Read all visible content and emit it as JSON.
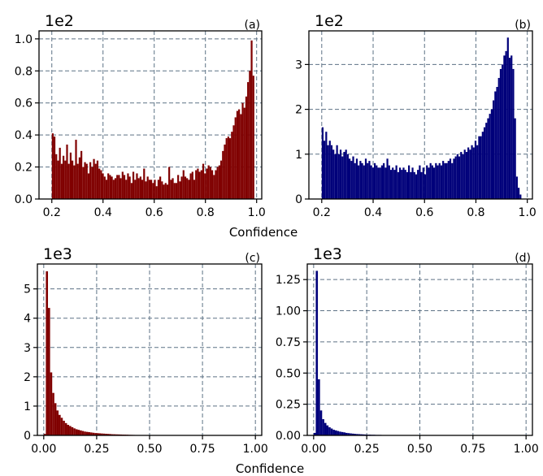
{
  "figure": {
    "xlabel_top": "Confidence",
    "xlabel_bottom": "Confidence"
  },
  "chart_data": [
    {
      "id": "a",
      "type": "bar",
      "panel_label": "(a)",
      "offset_text": "1e2",
      "color": "#800000",
      "bin_width": 0.007,
      "xlim": [
        0.15,
        1.02
      ],
      "ylim": [
        0,
        1.05
      ],
      "xticks": [
        0.2,
        0.4,
        0.6,
        0.8,
        1.0
      ],
      "xtick_labels": [
        "0.2",
        "0.4",
        "0.6",
        "0.8",
        "1.0"
      ],
      "yticks": [
        0.0,
        0.2,
        0.4,
        0.6,
        0.8,
        1.0
      ],
      "ytick_labels": [
        "0.0",
        "0.2",
        "0.4",
        "0.6",
        "0.8",
        "1.0"
      ],
      "grid": true,
      "x": [
        0.2,
        0.207,
        0.214,
        0.221,
        0.228,
        0.235,
        0.242,
        0.249,
        0.256,
        0.263,
        0.27,
        0.277,
        0.284,
        0.291,
        0.298,
        0.305,
        0.312,
        0.319,
        0.326,
        0.333,
        0.34,
        0.347,
        0.354,
        0.361,
        0.368,
        0.375,
        0.382,
        0.389,
        0.396,
        0.403,
        0.41,
        0.417,
        0.424,
        0.431,
        0.438,
        0.445,
        0.452,
        0.459,
        0.466,
        0.473,
        0.48,
        0.487,
        0.494,
        0.501,
        0.508,
        0.515,
        0.522,
        0.529,
        0.536,
        0.543,
        0.55,
        0.557,
        0.564,
        0.571,
        0.578,
        0.585,
        0.592,
        0.599,
        0.606,
        0.613,
        0.62,
        0.627,
        0.634,
        0.641,
        0.648,
        0.655,
        0.662,
        0.669,
        0.676,
        0.683,
        0.69,
        0.697,
        0.704,
        0.711,
        0.718,
        0.725,
        0.732,
        0.739,
        0.746,
        0.753,
        0.76,
        0.767,
        0.774,
        0.781,
        0.788,
        0.795,
        0.802,
        0.809,
        0.816,
        0.823,
        0.83,
        0.837,
        0.844,
        0.851,
        0.858,
        0.865,
        0.872,
        0.879,
        0.886,
        0.893,
        0.9,
        0.907,
        0.914,
        0.921,
        0.928,
        0.935,
        0.942,
        0.949,
        0.956,
        0.963,
        0.97,
        0.977,
        0.984
      ],
      "values": [
        0.41,
        0.39,
        0.28,
        0.24,
        0.32,
        0.22,
        0.27,
        0.24,
        0.34,
        0.22,
        0.29,
        0.24,
        0.21,
        0.37,
        0.22,
        0.26,
        0.3,
        0.2,
        0.23,
        0.22,
        0.16,
        0.23,
        0.2,
        0.25,
        0.22,
        0.24,
        0.19,
        0.18,
        0.16,
        0.14,
        0.12,
        0.16,
        0.15,
        0.14,
        0.12,
        0.13,
        0.15,
        0.15,
        0.13,
        0.17,
        0.15,
        0.12,
        0.16,
        0.14,
        0.1,
        0.17,
        0.12,
        0.16,
        0.13,
        0.14,
        0.12,
        0.19,
        0.11,
        0.14,
        0.12,
        0.12,
        0.1,
        0.12,
        0.08,
        0.12,
        0.14,
        0.11,
        0.09,
        0.1,
        0.09,
        0.2,
        0.12,
        0.13,
        0.1,
        0.1,
        0.15,
        0.11,
        0.14,
        0.18,
        0.14,
        0.13,
        0.12,
        0.16,
        0.17,
        0.12,
        0.18,
        0.19,
        0.17,
        0.18,
        0.22,
        0.16,
        0.19,
        0.21,
        0.2,
        0.18,
        0.15,
        0.18,
        0.2,
        0.21,
        0.24,
        0.3,
        0.34,
        0.38,
        0.39,
        0.38,
        0.42,
        0.46,
        0.51,
        0.55,
        0.56,
        0.53,
        0.6,
        0.57,
        0.64,
        0.73,
        0.8,
        0.99,
        0.77
      ]
    },
    {
      "id": "b",
      "type": "bar",
      "panel_label": "(b)",
      "offset_text": "1e2",
      "color": "#00007a",
      "bin_width": 0.007,
      "xlim": [
        0.15,
        1.02
      ],
      "ylim": [
        0,
        3.75
      ],
      "xticks": [
        0.2,
        0.4,
        0.6,
        0.8,
        1.0
      ],
      "xtick_labels": [
        "0.2",
        "0.4",
        "0.6",
        "0.8",
        "1.0"
      ],
      "yticks": [
        0,
        1,
        2,
        3
      ],
      "ytick_labels": [
        "0",
        "1",
        "2",
        "3"
      ],
      "grid": true,
      "x": [
        0.2,
        0.207,
        0.214,
        0.221,
        0.228,
        0.235,
        0.242,
        0.249,
        0.256,
        0.263,
        0.27,
        0.277,
        0.284,
        0.291,
        0.298,
        0.305,
        0.312,
        0.319,
        0.326,
        0.333,
        0.34,
        0.347,
        0.354,
        0.361,
        0.368,
        0.375,
        0.382,
        0.389,
        0.396,
        0.403,
        0.41,
        0.417,
        0.424,
        0.431,
        0.438,
        0.445,
        0.452,
        0.459,
        0.466,
        0.473,
        0.48,
        0.487,
        0.494,
        0.501,
        0.508,
        0.515,
        0.522,
        0.529,
        0.536,
        0.543,
        0.55,
        0.557,
        0.564,
        0.571,
        0.578,
        0.585,
        0.592,
        0.599,
        0.606,
        0.613,
        0.62,
        0.627,
        0.634,
        0.641,
        0.648,
        0.655,
        0.662,
        0.669,
        0.676,
        0.683,
        0.69,
        0.697,
        0.704,
        0.711,
        0.718,
        0.725,
        0.732,
        0.739,
        0.746,
        0.753,
        0.76,
        0.767,
        0.774,
        0.781,
        0.788,
        0.795,
        0.802,
        0.809,
        0.816,
        0.823,
        0.83,
        0.837,
        0.844,
        0.851,
        0.858,
        0.865,
        0.872,
        0.879,
        0.886,
        0.893,
        0.9,
        0.907,
        0.914,
        0.921,
        0.928,
        0.935,
        0.942,
        0.949,
        0.956,
        0.963,
        0.97
      ],
      "values": [
        1.6,
        1.3,
        1.5,
        1.2,
        1.3,
        1.2,
        1.1,
        1.0,
        1.2,
        1.0,
        1.1,
        0.95,
        1.05,
        1.1,
        1.0,
        0.9,
        0.85,
        0.95,
        0.8,
        0.9,
        0.75,
        0.85,
        0.8,
        0.75,
        0.9,
        0.8,
        0.85,
        0.75,
        0.7,
        0.8,
        0.75,
        0.7,
        0.7,
        0.75,
        0.8,
        0.7,
        0.9,
        0.75,
        0.65,
        0.7,
        0.65,
        0.75,
        0.6,
        0.7,
        0.65,
        0.7,
        0.65,
        0.6,
        0.75,
        0.6,
        0.7,
        0.6,
        0.55,
        0.65,
        0.75,
        0.6,
        0.7,
        0.55,
        0.75,
        0.7,
        0.8,
        0.75,
        0.7,
        0.8,
        0.75,
        0.8,
        0.75,
        0.85,
        0.8,
        0.8,
        0.85,
        0.9,
        0.8,
        0.9,
        0.95,
        1.0,
        0.95,
        1.05,
        1.0,
        1.1,
        1.05,
        1.15,
        1.1,
        1.2,
        1.15,
        1.3,
        1.2,
        1.4,
        1.4,
        1.5,
        1.6,
        1.7,
        1.8,
        1.9,
        2.0,
        2.2,
        2.4,
        2.5,
        2.7,
        2.9,
        3.0,
        3.2,
        3.3,
        3.6,
        3.15,
        3.2,
        2.9,
        1.8,
        0.5,
        0.25,
        0.1
      ]
    },
    {
      "id": "c",
      "type": "bar",
      "panel_label": "(c)",
      "offset_text": "1e3",
      "color": "#800000",
      "bin_width": 0.01,
      "xlim": [
        -0.03,
        1.03
      ],
      "ylim": [
        0,
        5.85
      ],
      "xticks": [
        0.0,
        0.25,
        0.5,
        0.75,
        1.0
      ],
      "xtick_labels": [
        "0.00",
        "0.25",
        "0.50",
        "0.75",
        "1.00"
      ],
      "yticks": [
        0,
        1,
        2,
        3,
        4,
        5
      ],
      "ytick_labels": [
        "0",
        "1",
        "2",
        "3",
        "4",
        "5"
      ],
      "grid": true,
      "x": [
        0.0,
        0.01,
        0.02,
        0.03,
        0.04,
        0.05,
        0.06,
        0.07,
        0.08,
        0.09,
        0.1,
        0.11,
        0.12,
        0.13,
        0.14,
        0.15,
        0.16,
        0.17,
        0.18,
        0.19,
        0.2,
        0.21,
        0.22,
        0.23,
        0.24,
        0.25,
        0.26,
        0.27,
        0.28,
        0.29,
        0.3,
        0.31,
        0.32,
        0.33,
        0.34,
        0.35,
        0.36,
        0.37,
        0.38,
        0.39,
        0.4,
        0.41,
        0.42,
        0.43,
        0.44,
        0.45,
        0.46,
        0.47,
        0.48,
        0.49
      ],
      "values": [
        0.05,
        5.6,
        4.35,
        2.15,
        1.45,
        1.1,
        0.85,
        0.7,
        0.6,
        0.5,
        0.42,
        0.36,
        0.32,
        0.28,
        0.24,
        0.21,
        0.19,
        0.17,
        0.15,
        0.13,
        0.12,
        0.11,
        0.1,
        0.09,
        0.08,
        0.075,
        0.07,
        0.065,
        0.06,
        0.055,
        0.05,
        0.045,
        0.04,
        0.038,
        0.035,
        0.033,
        0.03,
        0.028,
        0.026,
        0.024,
        0.02,
        0.018,
        0.016,
        0.014,
        0.012,
        0.01,
        0.008,
        0.006,
        0.005,
        0.004
      ]
    },
    {
      "id": "d",
      "type": "bar",
      "panel_label": "(d)",
      "offset_text": "1e3",
      "color": "#00007a",
      "bin_width": 0.01,
      "xlim": [
        -0.03,
        1.03
      ],
      "ylim": [
        0,
        1.375
      ],
      "xticks": [
        0.0,
        0.25,
        0.5,
        0.75,
        1.0
      ],
      "xtick_labels": [
        "0.00",
        "0.25",
        "0.50",
        "0.75",
        "1.00"
      ],
      "yticks": [
        0.0,
        0.25,
        0.5,
        0.75,
        1.0,
        1.25
      ],
      "ytick_labels": [
        "0.00",
        "0.25",
        "0.50",
        "0.75",
        "1.00",
        "1.25"
      ],
      "grid": true,
      "x": [
        0.0,
        0.01,
        0.02,
        0.03,
        0.04,
        0.05,
        0.06,
        0.07,
        0.08,
        0.09,
        0.1,
        0.11,
        0.12,
        0.13,
        0.14,
        0.15,
        0.16,
        0.17,
        0.18,
        0.19,
        0.2,
        0.21,
        0.22,
        0.23,
        0.24,
        0.25,
        0.26,
        0.27,
        0.28,
        0.29,
        0.3,
        0.31,
        0.32,
        0.33,
        0.34,
        0.35,
        0.36,
        0.37,
        0.38,
        0.39,
        0.4,
        0.41,
        0.42,
        0.43,
        0.44
      ],
      "values": [
        0.02,
        1.32,
        0.45,
        0.2,
        0.13,
        0.1,
        0.08,
        0.065,
        0.055,
        0.045,
        0.04,
        0.035,
        0.03,
        0.027,
        0.024,
        0.02,
        0.018,
        0.016,
        0.014,
        0.012,
        0.011,
        0.01,
        0.009,
        0.008,
        0.007,
        0.006,
        0.006,
        0.005,
        0.005,
        0.004,
        0.004,
        0.004,
        0.003,
        0.003,
        0.003,
        0.003,
        0.002,
        0.002,
        0.002,
        0.002,
        0.002,
        0.002,
        0.001,
        0.001,
        0.001
      ]
    }
  ]
}
